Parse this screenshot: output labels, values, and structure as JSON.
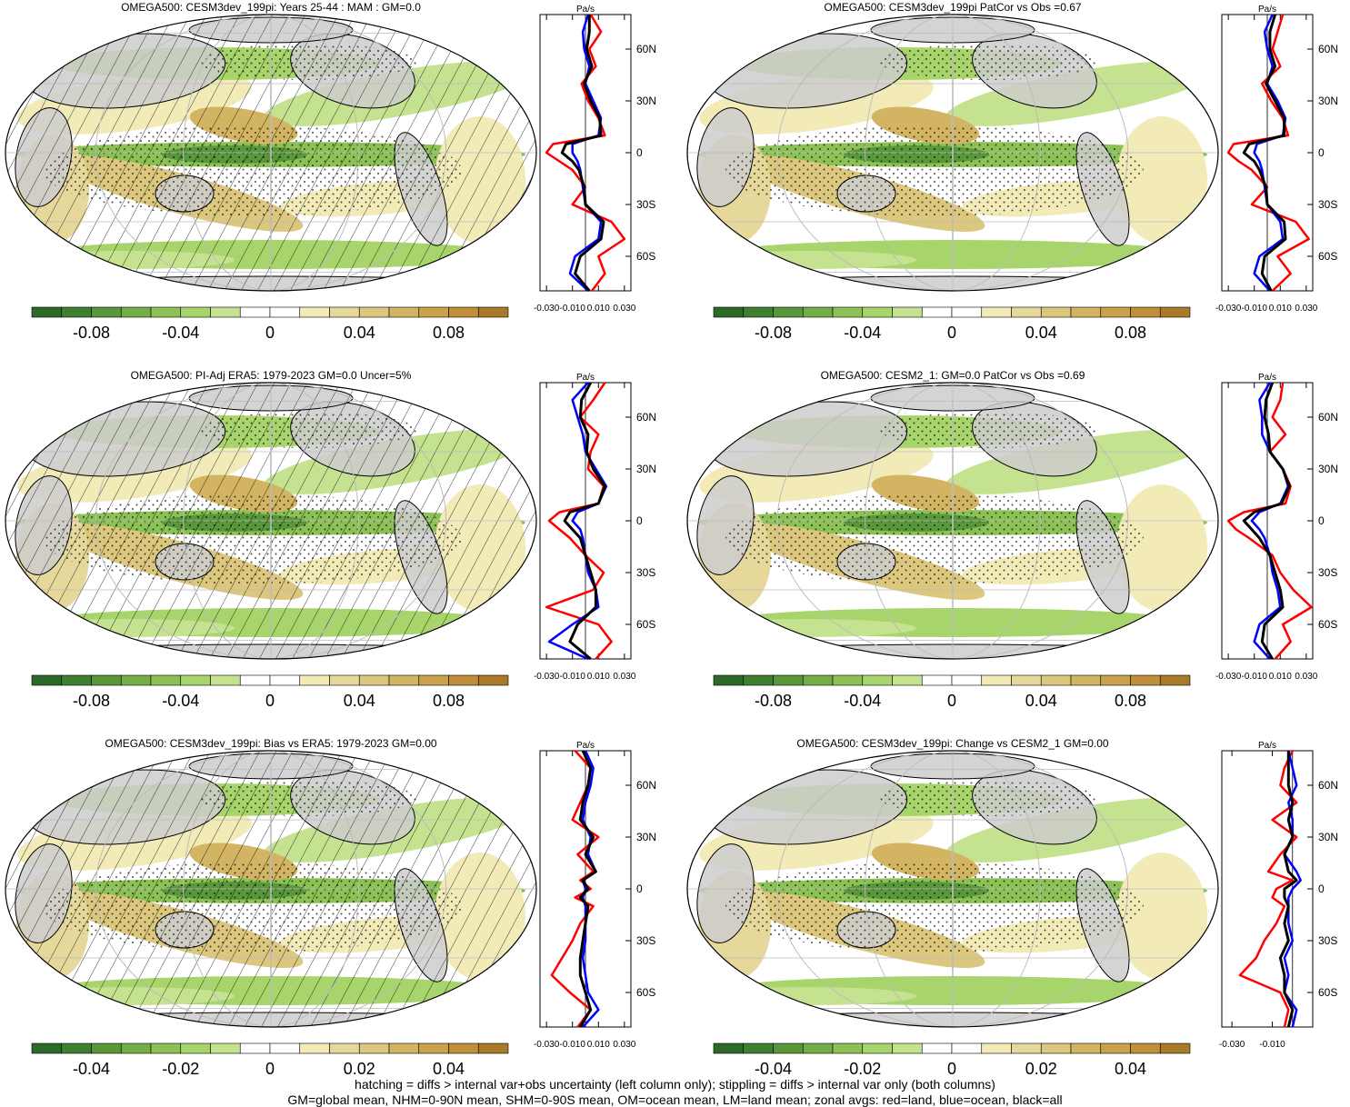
{
  "palette": [
    "#2d6a27",
    "#3e8030",
    "#58983b",
    "#72ad47",
    "#8cc255",
    "#a8d46c",
    "#c4e28f",
    "#ffffff",
    "#ffffff",
    "#f2ebb8",
    "#e6d89a",
    "#dcc77e",
    "#d2b463",
    "#c9a24a",
    "#bf9039",
    "#a97a2a"
  ],
  "land_color": "#cccccc",
  "footer": [
    "hatching = diffs > internal var+obs uncertainty (left column only); stippling = diffs > internal var only (both columns)",
    "GM=global mean, NHM=0-90N mean, SHM=0-90S mean, OM=ocean mean, LM=land mean; zonal avgs: red=land, blue=ocean, black=all"
  ],
  "panels": [
    {
      "title": "OMEGA500: CESM3dev_199pi: Years 25-44 : MAM : GM=0.0",
      "hatch": true,
      "colorbar_labels": [
        "-0.08",
        "-0.04",
        "0",
        "0.04",
        "0.08"
      ],
      "chart_data": {
        "type": "line",
        "xlabel": "Pa/s",
        "x_ticks": [
          "-0.030",
          "-0.010",
          "0.010",
          "0.030"
        ],
        "y_ticks": [
          "60N",
          "30N",
          "0",
          "30S",
          "60S"
        ],
        "xlim": [
          -0.035,
          0.035
        ],
        "lat": [
          80,
          70,
          60,
          50,
          40,
          30,
          20,
          10,
          5,
          0,
          -5,
          -10,
          -20,
          -30,
          -40,
          -50,
          -60,
          -70,
          -80
        ],
        "series": [
          {
            "name": "land",
            "color": "#ff0000",
            "values": [
              0.004,
              0.012,
              0.003,
              0.008,
              -0.003,
              0.002,
              0.01,
              0.015,
              -0.025,
              -0.03,
              -0.02,
              -0.01,
              0.0,
              -0.01,
              0.02,
              0.03,
              0.01,
              0.015,
              0.005
            ]
          },
          {
            "name": "ocean",
            "color": "#0000ff",
            "values": [
              0.002,
              -0.002,
              -0.001,
              0.003,
              0.0,
              0.006,
              0.012,
              0.01,
              -0.01,
              -0.01,
              -0.006,
              -0.004,
              -0.002,
              0.0,
              0.012,
              0.01,
              -0.008,
              -0.012,
              0.002
            ]
          },
          {
            "name": "all",
            "color": "#000000",
            "values": [
              0.003,
              0.003,
              0.001,
              0.005,
              -0.001,
              0.004,
              0.011,
              0.012,
              -0.015,
              -0.018,
              -0.01,
              -0.005,
              -0.001,
              0.0,
              0.014,
              0.012,
              -0.004,
              -0.008,
              0.003
            ]
          }
        ]
      }
    },
    {
      "title": "OMEGA500: CESM3dev_199pi PatCor vs Obs =0.67",
      "hatch": false,
      "colorbar_labels": [
        "-0.08",
        "-0.04",
        "0",
        "0.04",
        "0.08"
      ],
      "chart_data": {
        "type": "line",
        "xlabel": "Pa/s",
        "x_ticks": [
          "-0.030",
          "-0.010",
          "0.010",
          "0.030"
        ],
        "y_ticks": [
          "60N",
          "30N",
          "0",
          "30S",
          "60S"
        ],
        "xlim": [
          -0.035,
          0.035
        ],
        "lat": [
          80,
          70,
          60,
          50,
          40,
          30,
          20,
          10,
          5,
          0,
          -5,
          -10,
          -20,
          -30,
          -40,
          -50,
          -60,
          -70,
          -80
        ],
        "series": [
          {
            "name": "land",
            "color": "#ff0000",
            "values": [
              0.012,
              0.008,
              0.004,
              0.01,
              -0.004,
              0.003,
              0.012,
              0.016,
              -0.026,
              -0.03,
              -0.022,
              -0.012,
              0.0,
              -0.012,
              0.022,
              0.032,
              0.008,
              0.018,
              0.004
            ]
          },
          {
            "name": "ocean",
            "color": "#0000ff",
            "values": [
              0.004,
              -0.002,
              0.0,
              0.004,
              0.0,
              0.008,
              0.014,
              0.012,
              -0.008,
              -0.01,
              -0.006,
              -0.004,
              -0.002,
              0.0,
              0.01,
              0.012,
              -0.006,
              -0.01,
              0.002
            ]
          },
          {
            "name": "all",
            "color": "#000000",
            "values": [
              0.006,
              0.002,
              0.002,
              0.006,
              -0.001,
              0.006,
              0.013,
              0.013,
              -0.014,
              -0.018,
              -0.01,
              -0.006,
              -0.001,
              0.0,
              0.013,
              0.014,
              -0.002,
              -0.004,
              0.003
            ]
          }
        ]
      }
    },
    {
      "title": "OMEGA500: PI-Adj ERA5: 1979-2023 GM=0.0 Uncer=5%",
      "hatch": true,
      "colorbar_labels": [
        "-0.08",
        "-0.04",
        "0",
        "0.04",
        "0.08"
      ],
      "chart_data": {
        "type": "line",
        "xlabel": "Pa/s",
        "x_ticks": [
          "-0.030",
          "-0.010",
          "0.010",
          "0.030"
        ],
        "y_ticks": [
          "60N",
          "30N",
          "0",
          "30S",
          "60S"
        ],
        "xlim": [
          -0.035,
          0.035
        ],
        "lat": [
          80,
          70,
          60,
          50,
          40,
          30,
          20,
          10,
          5,
          0,
          -5,
          -10,
          -20,
          -30,
          -40,
          -50,
          -60,
          -70,
          -80
        ],
        "series": [
          {
            "name": "land",
            "color": "#ff0000",
            "values": [
              0.015,
              0.006,
              -0.004,
              0.01,
              0.004,
              0.002,
              0.014,
              0.01,
              -0.02,
              -0.028,
              -0.02,
              -0.012,
              0.0,
              0.014,
              0.006,
              -0.03,
              0.01,
              0.02,
              0.008
            ]
          },
          {
            "name": "ocean",
            "color": "#0000ff",
            "values": [
              0.002,
              -0.01,
              -0.006,
              -0.002,
              0.0,
              0.008,
              0.016,
              0.01,
              -0.006,
              -0.01,
              -0.004,
              -0.002,
              0.0,
              0.002,
              0.008,
              0.01,
              -0.01,
              -0.028,
              0.002
            ]
          },
          {
            "name": "all",
            "color": "#000000",
            "values": [
              0.004,
              -0.003,
              -0.004,
              0.002,
              0.001,
              0.006,
              0.015,
              0.01,
              -0.012,
              -0.016,
              -0.01,
              -0.004,
              0.0,
              0.004,
              0.008,
              0.008,
              -0.006,
              -0.012,
              0.004
            ]
          }
        ]
      }
    },
    {
      "title": "OMEGA500: CESM2_1: GM=0.0 PatCor vs Obs =0.69",
      "hatch": false,
      "colorbar_labels": [
        "-0.08",
        "-0.04",
        "0",
        "0.04",
        "0.08"
      ],
      "chart_data": {
        "type": "line",
        "xlabel": "Pa/s",
        "x_ticks": [
          "-0.030",
          "-0.010",
          "0.010",
          "0.030"
        ],
        "y_ticks": [
          "60N",
          "30N",
          "0",
          "30S",
          "60S"
        ],
        "xlim": [
          -0.035,
          0.035
        ],
        "lat": [
          80,
          70,
          60,
          50,
          40,
          30,
          20,
          10,
          5,
          0,
          -5,
          -10,
          -20,
          -30,
          -40,
          -50,
          -60,
          -70,
          -80
        ],
        "series": [
          {
            "name": "land",
            "color": "#ff0000",
            "values": [
              0.012,
              0.01,
              0.004,
              0.014,
              0.002,
              0.012,
              0.018,
              0.014,
              -0.018,
              -0.03,
              -0.024,
              -0.014,
              0.004,
              0.01,
              0.02,
              0.034,
              0.012,
              0.018,
              0.006
            ]
          },
          {
            "name": "ocean",
            "color": "#0000ff",
            "values": [
              0.002,
              -0.006,
              -0.004,
              -0.004,
              0.002,
              0.012,
              0.016,
              0.01,
              -0.006,
              -0.012,
              -0.006,
              -0.002,
              0.002,
              0.004,
              0.008,
              0.01,
              -0.006,
              -0.01,
              0.002
            ]
          },
          {
            "name": "all",
            "color": "#000000",
            "values": [
              0.004,
              -0.001,
              -0.002,
              0.001,
              0.002,
              0.012,
              0.017,
              0.011,
              -0.01,
              -0.018,
              -0.012,
              -0.006,
              0.002,
              0.006,
              0.01,
              0.012,
              -0.002,
              -0.004,
              0.004
            ]
          }
        ]
      }
    },
    {
      "title": "OMEGA500: CESM3dev_199pi: Bias vs ERA5: 1979-2023 GM=0.00",
      "hatch": true,
      "colorbar_labels": [
        "-0.04",
        "-0.02",
        "0",
        "0.02",
        "0.04"
      ],
      "chart_data": {
        "type": "line",
        "xlabel": "Pa/s",
        "x_ticks": [
          "-0.030",
          "-0.010",
          "0.010",
          "0.030"
        ],
        "y_ticks": [
          "60N",
          "30N",
          "0",
          "30S",
          "60S"
        ],
        "xlim": [
          -0.035,
          0.035
        ],
        "lat": [
          80,
          70,
          60,
          50,
          40,
          30,
          20,
          10,
          5,
          0,
          -5,
          -10,
          -20,
          -30,
          -40,
          -50,
          -60,
          -70,
          -80
        ],
        "series": [
          {
            "name": "land",
            "color": "#ff0000",
            "values": [
              -0.008,
              0.004,
              0.002,
              -0.004,
              -0.01,
              0.01,
              -0.006,
              0.006,
              -0.004,
              0.004,
              -0.008,
              0.006,
              -0.004,
              -0.01,
              -0.018,
              -0.026,
              -0.012,
              0.004,
              -0.006
            ]
          },
          {
            "name": "ocean",
            "color": "#0000ff",
            "values": [
              0.0,
              0.006,
              0.004,
              0.0,
              -0.002,
              0.004,
              0.002,
              0.008,
              -0.002,
              0.0,
              -0.002,
              0.0,
              0.0,
              0.0,
              -0.002,
              0.0,
              0.002,
              0.01,
              -0.002
            ]
          },
          {
            "name": "all",
            "color": "#000000",
            "values": [
              -0.002,
              0.004,
              0.002,
              -0.002,
              -0.004,
              0.006,
              0.0,
              0.008,
              -0.002,
              0.002,
              -0.004,
              0.002,
              0.0,
              -0.002,
              -0.004,
              -0.004,
              0.0,
              0.004,
              -0.004
            ]
          }
        ]
      }
    },
    {
      "title": "OMEGA500: CESM3dev_199pi: Change vs CESM2_1 GM=0.00",
      "hatch": false,
      "colorbar_labels": [
        "-0.04",
        "-0.02",
        "0",
        "0.02",
        "0.04"
      ],
      "chart_data": {
        "type": "line",
        "xlabel": "Pa/s",
        "x_ticks": [
          "-0.030",
          "-0.010"
        ],
        "y_ticks": [
          "60N",
          "30N",
          "0",
          "30S",
          "60S"
        ],
        "xlim": [
          -0.035,
          0.01
        ],
        "lat": [
          80,
          70,
          60,
          50,
          40,
          30,
          20,
          10,
          5,
          0,
          -5,
          -10,
          -20,
          -30,
          -40,
          -50,
          -60,
          -70,
          -80
        ],
        "series": [
          {
            "name": "land",
            "color": "#ff0000",
            "values": [
              0.0,
              -0.004,
              -0.006,
              0.002,
              -0.01,
              0.002,
              -0.006,
              -0.012,
              0.0,
              -0.008,
              -0.01,
              -0.004,
              -0.008,
              -0.014,
              -0.018,
              -0.026,
              -0.006,
              -0.002,
              -0.004
            ]
          },
          {
            "name": "ocean",
            "color": "#0000ff",
            "values": [
              -0.002,
              0.0,
              0.002,
              -0.002,
              0.0,
              0.0,
              -0.004,
              0.002,
              0.004,
              0.0,
              -0.002,
              -0.002,
              -0.002,
              0.0,
              -0.004,
              -0.002,
              -0.004,
              0.002,
              0.0
            ]
          },
          {
            "name": "all",
            "color": "#000000",
            "values": [
              -0.002,
              -0.002,
              -0.002,
              0.0,
              -0.002,
              0.0,
              -0.004,
              -0.002,
              0.002,
              -0.004,
              -0.004,
              -0.002,
              -0.004,
              -0.002,
              -0.006,
              -0.004,
              -0.004,
              0.0,
              -0.002
            ]
          }
        ]
      }
    }
  ]
}
